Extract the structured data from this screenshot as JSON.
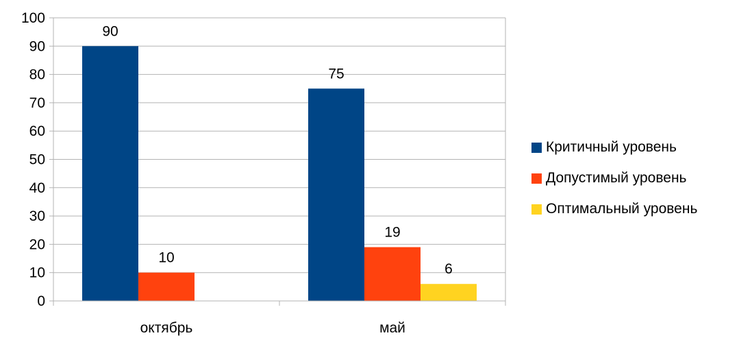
{
  "chart_data": {
    "type": "bar",
    "categories": [
      "октябрь",
      "май"
    ],
    "series": [
      {
        "name": "Критичный уровень",
        "values": [
          90,
          75
        ],
        "color": "#004586"
      },
      {
        "name": "Допустимый уровень",
        "values": [
          10,
          19
        ],
        "color": "#ff420e"
      },
      {
        "name": "Оптимальный уровень",
        "values": [
          null,
          6
        ],
        "color": "#ffd320"
      }
    ],
    "data_labels": [
      [
        "90",
        "75"
      ],
      [
        "10",
        "19"
      ],
      [
        "",
        "6"
      ]
    ],
    "y_ticks": [
      "0",
      "10",
      "20",
      "30",
      "40",
      "50",
      "60",
      "70",
      "80",
      "90",
      "100"
    ],
    "ylim": [
      0,
      100
    ],
    "grid": true,
    "legend_position": "right",
    "title": "",
    "xlabel": "",
    "ylabel": ""
  }
}
